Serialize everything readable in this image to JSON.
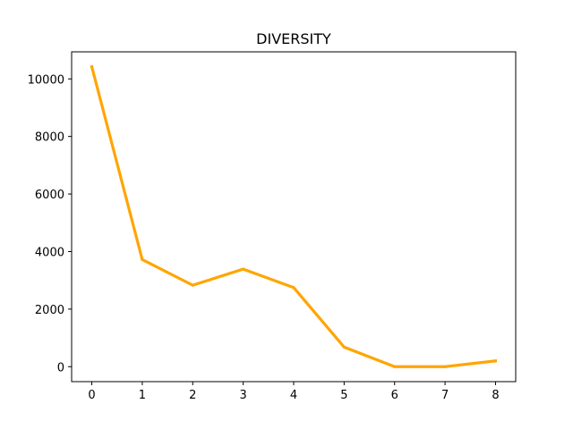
{
  "chart_data": {
    "type": "line",
    "title": "DIVERSITY",
    "xlabel": "",
    "ylabel": "",
    "x": [
      0,
      1,
      2,
      3,
      4,
      5,
      6,
      7,
      8
    ],
    "series": [
      {
        "values": [
          10420,
          3720,
          2830,
          3390,
          2750,
          680,
          0,
          0,
          200
        ],
        "color": "#ffa500"
      }
    ],
    "xlim": [
      -0.4,
      8.4
    ],
    "ylim": [
      -520,
      10940
    ],
    "x_ticks": [
      "0",
      "1",
      "2",
      "3",
      "4",
      "5",
      "6",
      "7",
      "8"
    ],
    "y_ticks": [
      "0",
      "2000",
      "4000",
      "6000",
      "8000",
      "10000"
    ],
    "grid": false,
    "legend": "none"
  }
}
